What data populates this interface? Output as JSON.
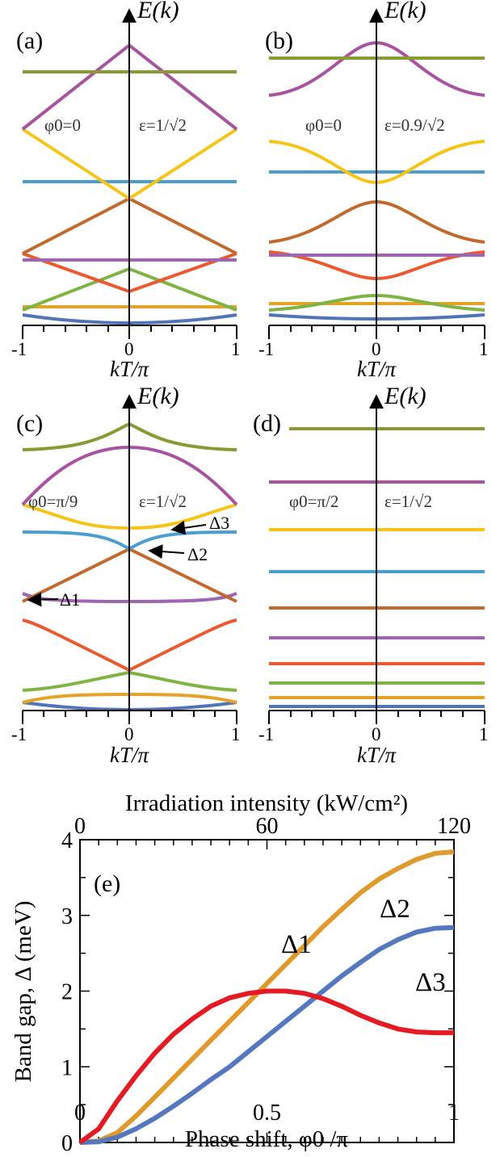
{
  "colors": {
    "blue": "#4f74b8",
    "orange": "#e4a227",
    "green": "#7fb443",
    "red": "#ea5a2e",
    "purple": "#9f65b0",
    "brown": "#c26a2e",
    "cyan": "#4a9fcf",
    "yellow": "#f6c417",
    "magenta": "#a8539f",
    "olive": "#8a9a32",
    "gap_red": "#e51b24",
    "gap_orange": "#e09a2c",
    "gap_blue": "#5577c0"
  },
  "band_panels": [
    {
      "label": "(a)",
      "ylabel": "E(k)",
      "xlabel": "kT/π",
      "xticks": [
        "-1",
        "0",
        "1"
      ],
      "phi_text": "φ0=0",
      "eps_text": "ε=1/√2",
      "annotations": []
    },
    {
      "label": "(b)",
      "ylabel": "E(k)",
      "xlabel": "kT/π",
      "xticks": [
        "-1",
        "0",
        "1"
      ],
      "phi_text": "φ0=0",
      "eps_text": "ε=0.9/√2",
      "annotations": []
    },
    {
      "label": "(c)",
      "ylabel": "E(k)",
      "xlabel": "kT/π",
      "xticks": [
        "-1",
        "0",
        "1"
      ],
      "phi_text": "φ0=π/9",
      "eps_text": "ε=1/√2",
      "annotations": [
        {
          "text": "Δ3"
        },
        {
          "text": "Δ2"
        },
        {
          "text": "Δ1"
        }
      ]
    },
    {
      "label": "(d)",
      "ylabel": "E(k)",
      "xlabel": "kT/π",
      "xticks": [
        "-1",
        "0",
        "1"
      ],
      "phi_text": "φ0=π/2",
      "eps_text": "ε=1/√2",
      "annotations": []
    }
  ],
  "chart_data": {
    "type": "line",
    "label": "(e)",
    "xlabel": "Phase shift, φ0 /π",
    "ylabel": "Band gap, Δ (meV)",
    "top_xlabel": "Irradiation intensity (kW/cm²)",
    "xlim": [
      0,
      1
    ],
    "ylim": [
      0,
      4
    ],
    "xticks": [
      "0",
      "0.5",
      "1"
    ],
    "yticks": [
      "0",
      "1",
      "2",
      "3",
      "4"
    ],
    "top_xticks": [
      "0",
      "60",
      "120"
    ],
    "x": [
      0,
      0.05,
      0.1,
      0.15,
      0.2,
      0.25,
      0.3,
      0.35,
      0.4,
      0.45,
      0.5,
      0.55,
      0.6,
      0.65,
      0.7,
      0.75,
      0.8,
      0.85,
      0.9,
      0.95,
      1.0
    ],
    "series": [
      {
        "name": "Δ1",
        "color": "#e09a2c",
        "values": [
          0,
          0.02,
          0.13,
          0.35,
          0.6,
          0.85,
          1.1,
          1.35,
          1.6,
          1.85,
          2.1,
          2.35,
          2.6,
          2.85,
          3.08,
          3.3,
          3.48,
          3.62,
          3.74,
          3.82,
          3.84
        ]
      },
      {
        "name": "Δ2",
        "color": "#5577c0",
        "values": [
          0,
          0.01,
          0.07,
          0.18,
          0.32,
          0.48,
          0.65,
          0.83,
          1.0,
          1.2,
          1.4,
          1.6,
          1.8,
          2.0,
          2.2,
          2.38,
          2.55,
          2.68,
          2.78,
          2.83,
          2.84
        ]
      },
      {
        "name": "Δ3",
        "color": "#e51b24",
        "values": [
          0,
          0.18,
          0.55,
          0.88,
          1.18,
          1.43,
          1.63,
          1.8,
          1.91,
          1.97,
          2.0,
          2.0,
          1.97,
          1.9,
          1.8,
          1.68,
          1.58,
          1.5,
          1.46,
          1.45,
          1.45
        ]
      }
    ]
  }
}
